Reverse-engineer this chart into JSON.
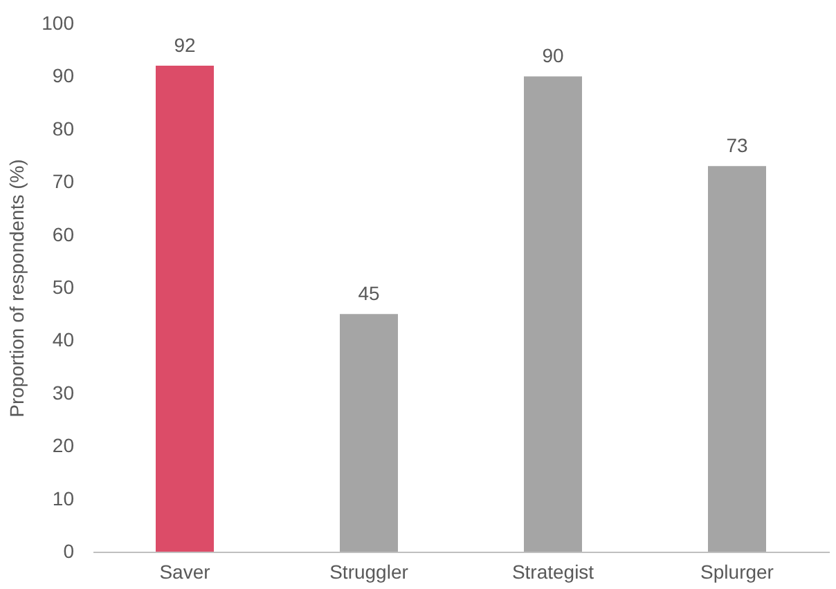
{
  "chart_data": {
    "type": "bar",
    "ylabel": "Proportion of respondents (%)",
    "categories": [
      "Saver",
      "Struggler",
      "Strategist",
      "Splurger"
    ],
    "values": [
      92,
      45,
      90,
      73
    ],
    "colors": [
      "#dc4c68",
      "#a5a5a5",
      "#a5a5a5",
      "#a5a5a5"
    ],
    "ylim": [
      0,
      100
    ],
    "yticks": [
      0,
      10,
      20,
      30,
      40,
      50,
      60,
      70,
      80,
      90,
      100
    ],
    "data_labels": true,
    "grid": false
  }
}
